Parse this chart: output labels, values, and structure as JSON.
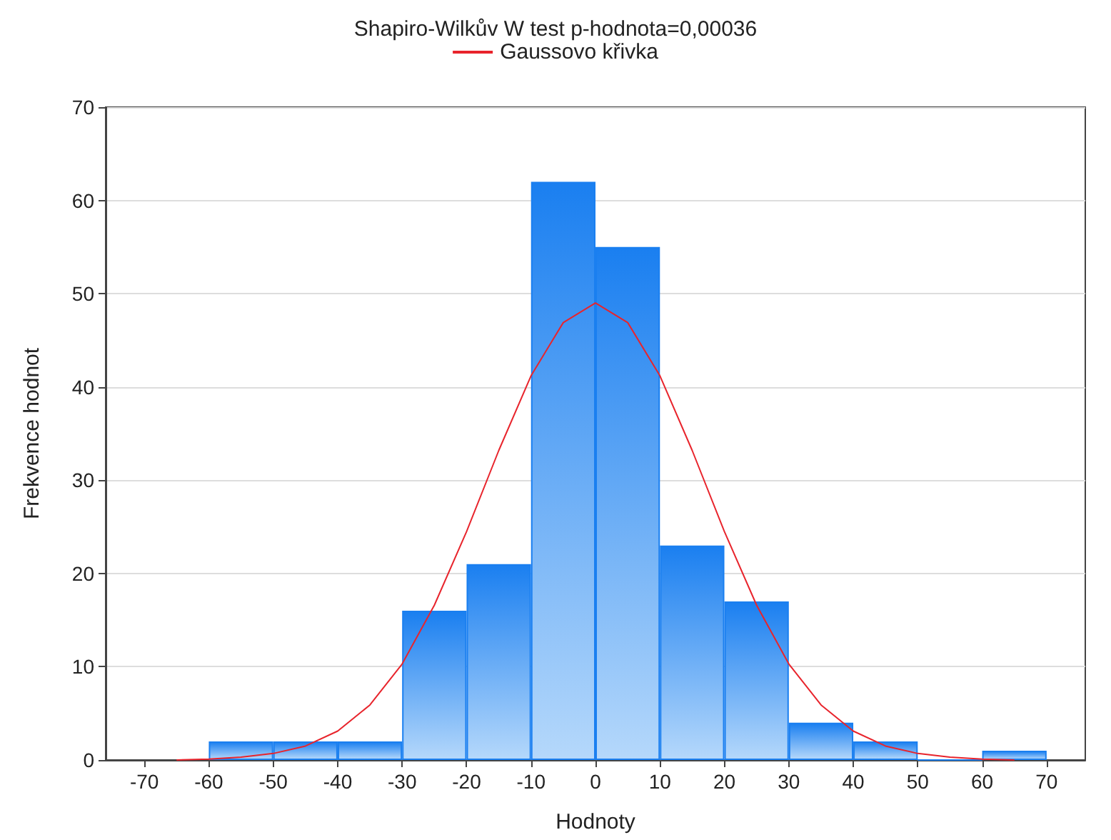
{
  "chart_data": {
    "type": "histogram",
    "title": "Shapiro-Wilkův W test p-hodnota=0,00036",
    "xlabel": "Hodnoty",
    "ylabel": "Frekvence hodnot",
    "bins": [
      -60,
      -50,
      -40,
      -30,
      -20,
      -10,
      0,
      10,
      20,
      30,
      40,
      50,
      60,
      70
    ],
    "values": [
      2,
      2,
      2,
      16,
      21,
      62,
      55,
      23,
      17,
      4,
      2,
      0,
      1
    ],
    "color": "#1a7ff0",
    "series": [
      {
        "type": "line",
        "name": "Gaussovo křivka",
        "color": "#e8242c",
        "x": [
          -65,
          -60,
          -55,
          -50,
          -45,
          -40,
          -35,
          -30,
          -25,
          -20,
          -15,
          -10,
          -5,
          0,
          5,
          10,
          15,
          20,
          25,
          30,
          35,
          40,
          45,
          50,
          55,
          60,
          65
        ],
        "values": [
          0,
          0.1,
          0.3,
          0.7,
          1.5,
          3.1,
          5.9,
          10.3,
          16.6,
          24.5,
          33.2,
          41.2,
          46.9,
          49,
          46.9,
          41.2,
          33.2,
          24.5,
          16.6,
          10.3,
          5.9,
          3.1,
          1.5,
          0.7,
          0.3,
          0.1,
          0
        ]
      }
    ],
    "xlim": [
      -76,
      76
    ],
    "xticks": [
      -70,
      -60,
      -50,
      -40,
      -30,
      -20,
      -10,
      0,
      10,
      20,
      30,
      40,
      50,
      60,
      70
    ],
    "ylim": [
      0,
      70
    ],
    "yticks": [
      0,
      10,
      20,
      30,
      40,
      50,
      60,
      70
    ],
    "grid": "y",
    "legend": "top",
    "marker": "none",
    "line_style": "solid"
  }
}
